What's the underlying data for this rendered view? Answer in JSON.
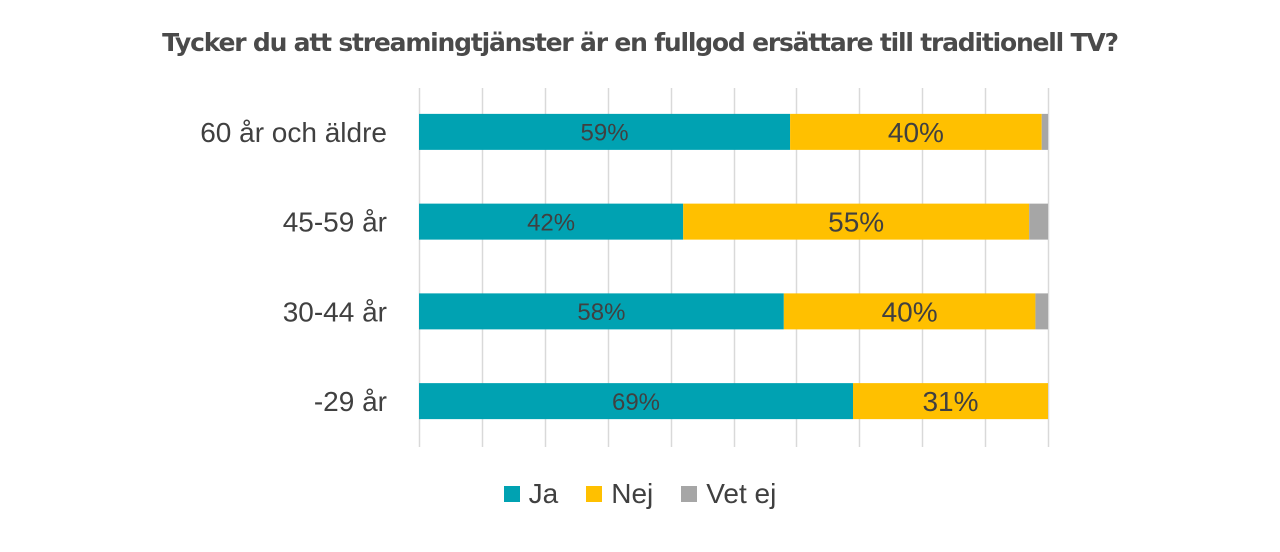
{
  "chart_data": {
    "type": "bar",
    "orientation": "horizontal",
    "stacked": true,
    "title": "Tycker du att streamingtjänster är en fullgod ersättare till traditionell TV?",
    "categories": [
      "60 år och äldre",
      "45-59 år",
      "30-44 år",
      "-29 år"
    ],
    "series": [
      {
        "name": "Ja",
        "color": "#00A2B2",
        "values": [
          59,
          42,
          58,
          69
        ],
        "labels": [
          "59%",
          "42%",
          "58%",
          "69%"
        ]
      },
      {
        "name": "Nej",
        "color": "#FFC000",
        "values": [
          40,
          55,
          40,
          31
        ],
        "labels": [
          "40%",
          "55%",
          "40%",
          "31%"
        ]
      },
      {
        "name": "Vet ej",
        "color": "#A6A6A6",
        "values": [
          1,
          3,
          2,
          0
        ],
        "labels": [
          "",
          "",
          "",
          ""
        ]
      }
    ],
    "xlim": [
      0,
      100
    ],
    "grid": true,
    "legend_position": "bottom"
  }
}
